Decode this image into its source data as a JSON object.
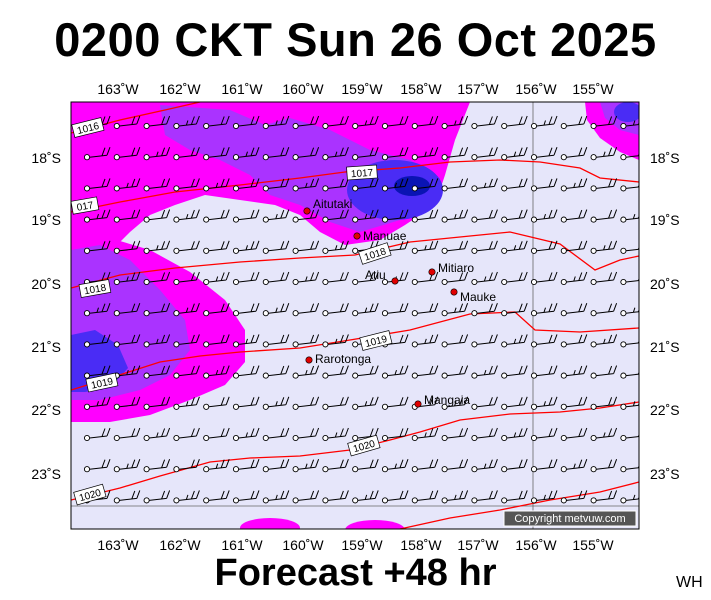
{
  "title": "0200 CKT Sun 26 Oct 2025",
  "subtitle": "Forecast +48 hr",
  "corner_code": "WH",
  "copyright": "Copyright metvuw.com",
  "colors": {
    "ocean": "#e6e6fa",
    "rain_light": "#ff00ff",
    "rain_medium": "#aa33ff",
    "rain_heavy": "#4a2cf5",
    "rain_max": "#0a14b4",
    "isobar": "#ff0000",
    "island_dot": "#e00000"
  },
  "lon_labels": [
    "163˚W",
    "162˚W",
    "161˚W",
    "160˚W",
    "159˚W",
    "158˚W",
    "157˚W",
    "156˚W",
    "155˚W"
  ],
  "lat_labels": [
    "18˚S",
    "19˚S",
    "20˚S",
    "21˚S",
    "22˚S",
    "23˚S"
  ],
  "isobar_labels": [
    {
      "text": "1016"
    },
    {
      "text": "1017"
    },
    {
      "text": "017"
    },
    {
      "text": "1018"
    },
    {
      "text": "1018"
    },
    {
      "text": "1019"
    },
    {
      "text": "1019"
    },
    {
      "text": "1020"
    },
    {
      "text": "1020"
    }
  ],
  "islands": [
    {
      "name": "Aitutaki"
    },
    {
      "name": "Manuae"
    },
    {
      "name": "Atiu"
    },
    {
      "name": "Mitiaro"
    },
    {
      "name": "Mauke"
    },
    {
      "name": "Rarotonga"
    },
    {
      "name": "Mangaia"
    }
  ],
  "wind_barbs": {
    "rows": 13,
    "cols": 19
  }
}
